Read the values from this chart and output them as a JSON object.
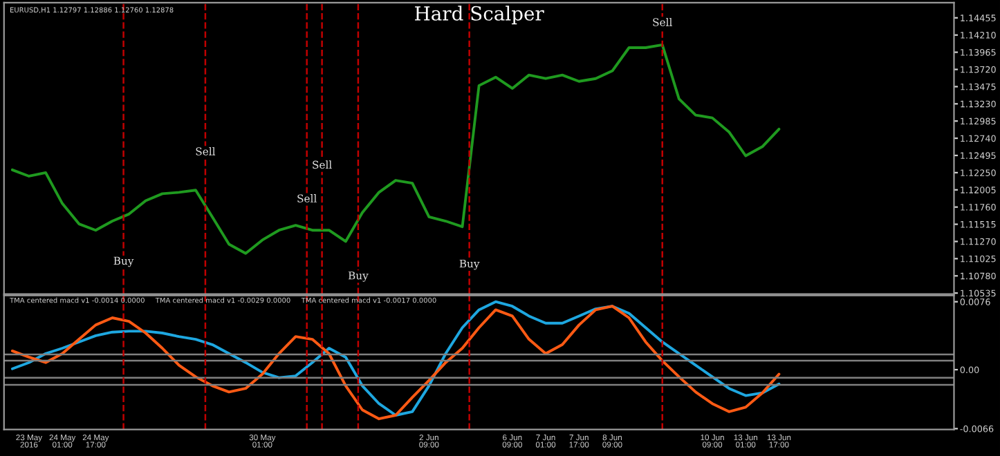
{
  "chart_data": [
    {
      "type": "line",
      "title": "Hard Scalper",
      "tick_labels": "y",
      "ylim": [
        1.1052,
        1.1467
      ],
      "series": [
        {
          "color": "#1f9a1f",
          "values": [
            1.1229,
            1.122,
            1.1225,
            1.1181,
            1.1152,
            1.1143,
            1.1156,
            1.1166,
            1.1185,
            1.1195,
            1.1197,
            1.12,
            1.1162,
            1.1123,
            1.111,
            1.1129,
            1.1143,
            1.115,
            1.1143,
            1.1143,
            1.1127,
            1.1168,
            1.1197,
            1.1214,
            1.121,
            1.1162,
            1.1156,
            1.1148,
            1.1349,
            1.1361,
            1.1345,
            1.1364,
            1.1359,
            1.1364,
            1.1355,
            1.1359,
            1.137,
            1.1403,
            1.1403,
            1.1407,
            1.133,
            1.1307,
            1.1303,
            1.1283,
            1.1249,
            1.1262,
            1.1287,
            null,
            null,
            null,
            null,
            null,
            null,
            null,
            null,
            null,
            null
          ]
        }
      ],
      "yticks": [
        {
          "value": 1.10535,
          "label": "1.10535"
        },
        {
          "value": 1.1078,
          "label": "1.10780"
        },
        {
          "value": 1.11025,
          "label": "1.11025"
        },
        {
          "value": 1.1127,
          "label": "1.11270"
        },
        {
          "value": 1.11515,
          "label": "1.11515"
        },
        {
          "value": 1.1176,
          "label": "1.11760"
        },
        {
          "value": 1.12005,
          "label": "1.12005"
        },
        {
          "value": 1.1225,
          "label": "1.12250"
        },
        {
          "value": 1.12495,
          "label": "1.12495"
        },
        {
          "value": 1.1274,
          "label": "1.12740"
        },
        {
          "value": 1.12985,
          "label": "1.12985"
        },
        {
          "value": 1.1323,
          "label": "1.13230"
        },
        {
          "value": 1.13475,
          "label": "1.13475"
        },
        {
          "value": 1.1372,
          "label": "1.13720"
        },
        {
          "value": 1.13965,
          "label": "1.13965"
        },
        {
          "value": 1.1421,
          "label": "1.14210"
        },
        {
          "value": 1.14455,
          "label": "1.14455"
        }
      ],
      "annotations": [
        "EURUSD,H1 1.12797 1.12886 1.12760 1.12878",
        {
          "text": "Buy",
          "y": 1.1098
        },
        {
          "text": "Sell",
          "y": 1.1254
        },
        {
          "text": "Sell",
          "y": 1.1187
        },
        {
          "text": "Sell",
          "y": 1.1235
        },
        {
          "text": "Buy",
          "y": 1.1077
        },
        {
          "text": "Buy",
          "y": 1.1094
        },
        {
          "text": "Sell",
          "y": 1.1438
        }
      ]
    },
    {
      "type": "line",
      "ylim": [
        -0.0067,
        0.0083
      ],
      "categories": [
        null,
        "23 May 2016",
        null,
        "24 May 01:00",
        null,
        "24 May 17:00",
        null,
        null,
        null,
        null,
        null,
        null,
        null,
        null,
        null,
        "30 May 01:00",
        null,
        null,
        null,
        null,
        null,
        null,
        null,
        null,
        null,
        "2 Jun 09:00",
        null,
        null,
        null,
        null,
        "6 Jun 09:00",
        null,
        "7 Jun 01:00",
        null,
        "7 Jun 17:00",
        null,
        "8 Jun 09:00",
        null,
        null,
        null,
        null,
        null,
        "10 Jun 09:00",
        null,
        "13 Jun 01:00",
        null,
        "13 Jun 17:00",
        null,
        null,
        null,
        null,
        null,
        null,
        null,
        null,
        null,
        null
      ],
      "series": [
        {
          "color": "#1ea7e0",
          "values": [
            0.0001,
            0.0008,
            0.0018,
            0.0024,
            0.0031,
            0.0038,
            0.0042,
            0.0043,
            0.0043,
            0.0041,
            0.0037,
            0.0034,
            0.0028,
            0.0018,
            0.0008,
            -0.0003,
            -0.0009,
            -0.0007,
            0.0008,
            0.0024,
            0.0014,
            -0.0018,
            -0.0038,
            -0.0051,
            -0.0047,
            -0.0018,
            0.0018,
            0.0047,
            0.0067,
            0.0076,
            0.0071,
            0.006,
            0.0052,
            0.0052,
            0.006,
            0.0068,
            0.0071,
            0.0063,
            0.0047,
            0.0031,
            0.0018,
            0.0005,
            -0.0008,
            -0.0021,
            -0.0029,
            -0.0026,
            -0.0016,
            null,
            null,
            null,
            null,
            null,
            null,
            null,
            null,
            null,
            null
          ]
        },
        {
          "color": "#ff5a14",
          "values": [
            0.0021,
            0.0014,
            0.0008,
            0.0018,
            0.0034,
            0.005,
            0.0058,
            0.0054,
            0.0041,
            0.0024,
            0.0005,
            -0.0008,
            -0.0018,
            -0.0025,
            -0.0021,
            -0.0005,
            0.0018,
            0.0037,
            0.0034,
            0.0018,
            -0.0018,
            -0.0045,
            -0.0055,
            -0.0051,
            -0.0031,
            -0.0012,
            0.0008,
            0.0024,
            0.0047,
            0.0067,
            0.006,
            0.0034,
            0.0018,
            0.0028,
            0.005,
            0.0067,
            0.0071,
            0.0058,
            0.0031,
            0.001,
            -0.0008,
            -0.0025,
            -0.0038,
            -0.0047,
            -0.0042,
            -0.0026,
            -0.0005,
            null,
            null,
            null,
            null,
            null,
            null,
            null,
            null,
            null,
            null
          ]
        }
      ],
      "yticks": [
        {
          "value": 0.0076,
          "label": "0.0076"
        },
        {
          "value": 0,
          "label": "0.00"
        },
        {
          "value": -0.0066,
          "label": "-0.0066"
        }
      ],
      "ref_lines": [
        {
          "axis": "y",
          "value": 0.0017,
          "color": "#808080",
          "line_style": "solid"
        },
        {
          "axis": "y",
          "value": 0.001,
          "color": "#808080",
          "line_style": "solid"
        },
        {
          "axis": "y",
          "value": -0.0009,
          "color": "#808080",
          "line_style": "solid"
        },
        {
          "axis": "y",
          "value": -0.0017,
          "color": "#808080",
          "line_style": "solid"
        }
      ],
      "annotations": [
        "TMA centered macd v1 -0.0014 0.0000",
        "TMA centered macd v1 -0.0029 0.0000",
        "TMA centered macd v1 -0.0017 0.0000"
      ]
    }
  ]
}
